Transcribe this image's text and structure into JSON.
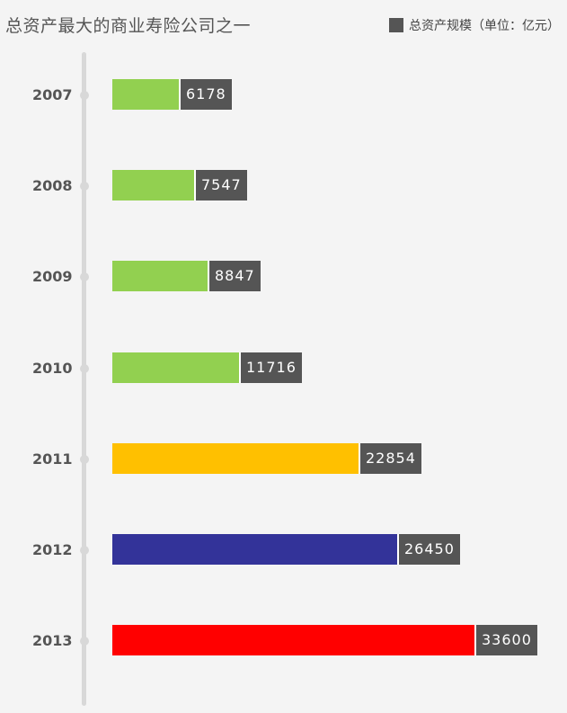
{
  "title": "总资产最大的商业寿险公司之一",
  "legend": {
    "label": "总资产规模（单位：亿元）",
    "color": "#555555"
  },
  "chart_data": {
    "type": "bar",
    "orientation": "horizontal",
    "categories": [
      "2007",
      "2008",
      "2009",
      "2010",
      "2011",
      "2012",
      "2013"
    ],
    "values": [
      6178,
      7547,
      8847,
      11716,
      22854,
      26450,
      33600
    ],
    "value_labels": [
      "6178",
      "7547",
      "8847",
      "11716",
      "22854",
      "26450",
      "33600"
    ],
    "bar_colors": [
      "#92d050",
      "#92d050",
      "#92d050",
      "#92d050",
      "#ffc000",
      "#333399",
      "#ff0000"
    ],
    "label_bg": "#555555",
    "series": [
      {
        "name": "总资产规模（单位：亿元）",
        "values": [
          6178,
          7547,
          8847,
          11716,
          22854,
          26450,
          33600
        ]
      }
    ],
    "xlim": [
      0,
      33600
    ],
    "grid": false,
    "legend_position": "top-right"
  }
}
